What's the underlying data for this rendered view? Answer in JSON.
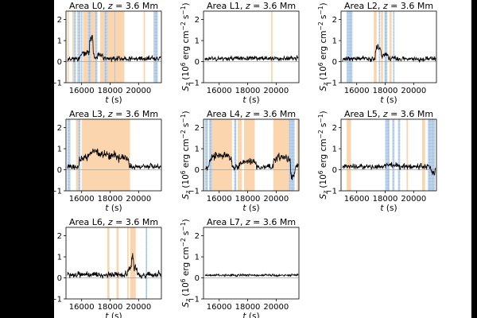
{
  "chart_data": [
    {
      "type": "line",
      "title": "Area L0, z = 3.6 Mm",
      "xlabel": "t (s)",
      "ylabel": "S_z (10^6 erg cm^-2 s^-1)",
      "xlim": [
        14900,
        21600
      ],
      "ylim": [
        -1,
        2.4
      ],
      "xticks": [
        16000,
        18000,
        20000
      ],
      "yticks": [
        -1,
        0,
        1,
        2
      ],
      "seed": 11,
      "amp": 0.14,
      "features": [
        [
          15900,
          16900,
          0.25
        ],
        [
          16550,
          16800,
          0.9
        ],
        [
          17100,
          17500,
          0.15
        ]
      ],
      "orange_bands": [
        [
          15000,
          15100
        ],
        [
          15350,
          15450
        ],
        [
          16100,
          16450
        ],
        [
          16650,
          16950
        ],
        [
          17300,
          17600
        ],
        [
          17800,
          18300
        ],
        [
          18350,
          19000
        ],
        [
          20350,
          20450
        ]
      ],
      "blue_bands": [
        [
          15450,
          15600
        ],
        [
          15700,
          15900
        ],
        [
          15950,
          16050
        ],
        [
          16450,
          16650
        ],
        [
          16950,
          17100
        ],
        [
          17600,
          17800
        ],
        [
          18300,
          18350
        ],
        [
          21050,
          21350
        ]
      ]
    },
    {
      "type": "line",
      "title": "Area L1, z = 3.6 Mm",
      "xlabel": "t (s)",
      "ylabel": "S_z (10^6 erg cm^-2 s^-1)",
      "xlim": [
        14900,
        21600
      ],
      "ylim": [
        -1,
        2.4
      ],
      "xticks": [
        16000,
        18000,
        20000
      ],
      "yticks": [
        -1,
        0,
        1,
        2
      ],
      "seed": 23,
      "amp": 0.12,
      "features": [
        [
          15000,
          21600,
          0.02
        ]
      ],
      "orange_bands": [
        [
          19650,
          19750
        ]
      ],
      "blue_bands": []
    },
    {
      "type": "line",
      "title": "Area L2, z = 3.6 Mm",
      "xlabel": "t (s)",
      "ylabel": "S_z (10^6 erg cm^-2 s^-1)",
      "xlim": [
        14900,
        21600
      ],
      "ylim": [
        -1,
        2.4
      ],
      "xticks": [
        16000,
        18000,
        20000
      ],
      "yticks": [
        -1,
        0,
        1,
        2
      ],
      "seed": 37,
      "amp": 0.13,
      "features": [
        [
          17300,
          17700,
          0.5
        ],
        [
          17700,
          18200,
          0.2
        ]
      ],
      "orange_bands": [
        [
          17200,
          17400
        ],
        [
          17700,
          17850
        ],
        [
          18300,
          18450
        ]
      ],
      "blue_bands": [
        [
          15300,
          15700
        ],
        [
          17550,
          17650
        ],
        [
          17950,
          18150
        ],
        [
          18550,
          18650
        ]
      ]
    },
    {
      "type": "line",
      "title": "Area L3, z = 3.6 Mm",
      "xlabel": "t (s)",
      "ylabel": "S_z (10^6 erg cm^-2 s^-1)",
      "xlim": [
        14900,
        21600
      ],
      "ylim": [
        -1,
        2.4
      ],
      "xticks": [
        16000,
        18000,
        20000
      ],
      "yticks": [
        -1,
        0,
        1,
        2
      ],
      "seed": 41,
      "amp": 0.15,
      "features": [
        [
          15800,
          19300,
          0.55
        ],
        [
          16500,
          17200,
          0.2
        ]
      ],
      "orange_bands": [
        [
          15600,
          15750
        ],
        [
          16000,
          19400
        ]
      ],
      "blue_bands": [
        [
          15000,
          15200
        ],
        [
          15750,
          15900
        ]
      ]
    },
    {
      "type": "line",
      "title": "Area L4, z = 3.6 Mm",
      "xlabel": "t (s)",
      "ylabel": "S_z (10^6 erg cm^-2 s^-1)",
      "xlim": [
        14900,
        21600
      ],
      "ylim": [
        -1,
        2.4
      ],
      "xticks": [
        16000,
        18000,
        20000
      ],
      "yticks": [
        -1,
        0,
        1,
        2
      ],
      "seed": 53,
      "amp": 0.16,
      "features": [
        [
          15300,
          16900,
          0.55
        ],
        [
          17400,
          18600,
          0.25
        ],
        [
          19800,
          21000,
          0.45
        ],
        [
          21000,
          21300,
          -0.5
        ]
      ],
      "orange_bands": [
        [
          15500,
          16900
        ],
        [
          17300,
          17600
        ],
        [
          17750,
          18500
        ],
        [
          19800,
          20900
        ],
        [
          21450,
          21600
        ]
      ],
      "blue_bands": [
        [
          15000,
          15200
        ],
        [
          15300,
          15500
        ],
        [
          17050,
          17200
        ],
        [
          20900,
          21300
        ]
      ]
    },
    {
      "type": "line",
      "title": "Area L5, z = 3.6 Mm",
      "xlabel": "t (s)",
      "ylabel": "S_z (10^6 erg cm^-2 s^-1)",
      "xlim": [
        14900,
        21600
      ],
      "ylim": [
        -1,
        2.4
      ],
      "xticks": [
        16000,
        18000,
        20000
      ],
      "yticks": [
        -1,
        0,
        1,
        2
      ],
      "seed": 61,
      "amp": 0.14,
      "features": [
        [
          17900,
          19000,
          0.1
        ],
        [
          21200,
          21500,
          -0.3
        ]
      ],
      "orange_bands": [
        [
          15300,
          15600
        ],
        [
          19500,
          19600
        ],
        [
          20600,
          20800
        ]
      ],
      "blue_bands": [
        [
          18000,
          18300
        ],
        [
          18500,
          18650
        ],
        [
          18900,
          19050
        ],
        [
          21000,
          21500
        ]
      ]
    },
    {
      "type": "line",
      "title": "Area L6, z = 3.6 Mm",
      "xlabel": "t (s)",
      "ylabel": "S_z (10^6 erg cm^-2 s^-1)",
      "xlim": [
        14900,
        21600
      ],
      "ylim": [
        -1,
        2.4
      ],
      "xticks": [
        16000,
        18000,
        20000
      ],
      "yticks": [
        -1,
        0,
        1,
        2
      ],
      "seed": 73,
      "amp": 0.17,
      "features": [
        [
          19200,
          19900,
          0.35
        ],
        [
          19500,
          19650,
          0.6
        ]
      ],
      "orange_bands": [
        [
          17800,
          17950
        ],
        [
          18450,
          18600
        ],
        [
          19200,
          19300
        ],
        [
          19400,
          19800
        ]
      ],
      "blue_bands": [
        [
          20500,
          20600
        ]
      ]
    },
    {
      "type": "line",
      "title": "Area L7, z = 3.6 Mm",
      "xlabel": "t (s)",
      "ylabel": "S_z (10^6 erg cm^-2 s^-1)",
      "xlim": [
        14900,
        21600
      ],
      "ylim": [
        -1,
        2.4
      ],
      "xticks": [
        16000,
        18000,
        20000
      ],
      "yticks": [
        -1,
        0,
        1,
        2
      ],
      "seed": 89,
      "amp": 0.06,
      "features": [
        [
          15000,
          21600,
          0.01
        ]
      ],
      "orange_bands": [],
      "blue_bands": []
    }
  ],
  "colors": {
    "background": "#000000",
    "figure": "#ffffff",
    "line": "#000000",
    "orange_band": "#fbd5ad",
    "blue_band": "#bcd3ea",
    "blue_hatch": "#8fb3dc",
    "zero_line": "#999999"
  }
}
